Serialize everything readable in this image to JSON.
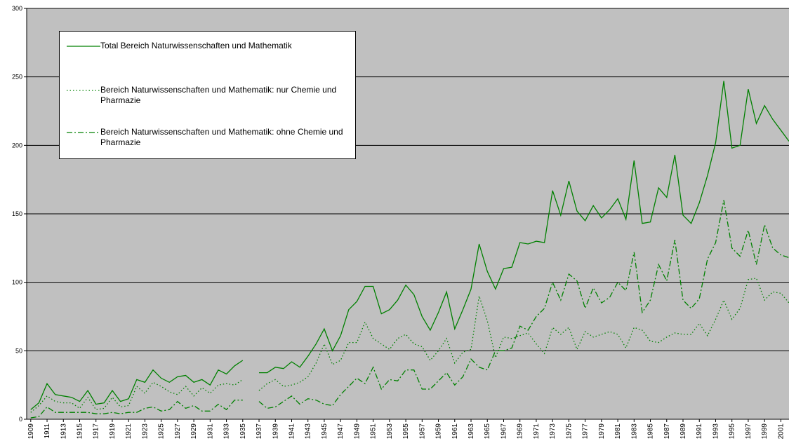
{
  "chart_data": {
    "type": "line",
    "x": [
      1909,
      1910,
      1911,
      1912,
      1913,
      1914,
      1915,
      1916,
      1917,
      1918,
      1919,
      1920,
      1921,
      1922,
      1923,
      1924,
      1925,
      1926,
      1927,
      1928,
      1929,
      1930,
      1931,
      1932,
      1933,
      1934,
      1935,
      1936,
      1937,
      1938,
      1939,
      1940,
      1941,
      1942,
      1943,
      1944,
      1945,
      1946,
      1947,
      1948,
      1949,
      1950,
      1951,
      1952,
      1953,
      1954,
      1955,
      1956,
      1957,
      1958,
      1959,
      1960,
      1961,
      1962,
      1963,
      1964,
      1965,
      1966,
      1967,
      1968,
      1969,
      1970,
      1971,
      1972,
      1973,
      1974,
      1975,
      1976,
      1977,
      1978,
      1979,
      1980,
      1981,
      1982,
      1983,
      1984,
      1985,
      1986,
      1987,
      1988,
      1989,
      1990,
      1991,
      1992,
      1993,
      1994,
      1995,
      1996,
      1997,
      1998,
      1999,
      2000,
      2001,
      2002
    ],
    "xlim": [
      1908.5,
      2002
    ],
    "xticks": [
      1909,
      1911,
      1913,
      1915,
      1917,
      1919,
      1921,
      1923,
      1925,
      1927,
      1929,
      1931,
      1933,
      1935,
      1937,
      1939,
      1941,
      1943,
      1945,
      1947,
      1949,
      1951,
      1953,
      1955,
      1957,
      1959,
      1961,
      1963,
      1965,
      1967,
      1969,
      1971,
      1973,
      1975,
      1977,
      1979,
      1981,
      1983,
      1985,
      1987,
      1989,
      1991,
      1993,
      1995,
      1997,
      1999,
      2001
    ],
    "ylim": [
      0,
      300
    ],
    "yticks": [
      0,
      50,
      100,
      150,
      200,
      250,
      300
    ],
    "grid": true,
    "series": [
      {
        "name": "Total Bereich Naturwissenschaften und Mathematik",
        "color": "#008000",
        "dash": "solid",
        "values": [
          7,
          12,
          26,
          18,
          17,
          16,
          13,
          21,
          11,
          12,
          21,
          13,
          15,
          29,
          27,
          36,
          30,
          27,
          31,
          32,
          27,
          29,
          25,
          36,
          33,
          39,
          43,
          null,
          34,
          34,
          38,
          37,
          42,
          38,
          46,
          55,
          66,
          50,
          61,
          80,
          86,
          97,
          97,
          77,
          80,
          87,
          98,
          91,
          75,
          65,
          78,
          93,
          66,
          80,
          95,
          128,
          108,
          95,
          110,
          111,
          129,
          128,
          130,
          129,
          167,
          149,
          174,
          152,
          145,
          156,
          147,
          153,
          161,
          146,
          189,
          143,
          144,
          169,
          162,
          193,
          149,
          143,
          158,
          178,
          202,
          247,
          198,
          200,
          241,
          216,
          229,
          219,
          211,
          203
        ]
      },
      {
        "name": "Bereich Naturwissenschaften und Mathematik: nur Chemie und Pharmazie",
        "color": "#008000",
        "dash": "dotted",
        "values": [
          5,
          10,
          17,
          13,
          12,
          12,
          8,
          16,
          7,
          8,
          16,
          9,
          10,
          24,
          19,
          27,
          24,
          20,
          18,
          24,
          17,
          23,
          19,
          25,
          26,
          25,
          29,
          null,
          21,
          26,
          29,
          24,
          25,
          27,
          31,
          41,
          55,
          40,
          43,
          56,
          56,
          71,
          59,
          55,
          51,
          59,
          62,
          55,
          53,
          43,
          50,
          59,
          41,
          49,
          51,
          90,
          72,
          45,
          60,
          59,
          61,
          63,
          55,
          48,
          67,
          62,
          67,
          51,
          64,
          60,
          62,
          64,
          62,
          52,
          67,
          65,
          57,
          56,
          60,
          63,
          62,
          62,
          70,
          61,
          73,
          87,
          73,
          81,
          102,
          103,
          87,
          93,
          92,
          85
        ]
      },
      {
        "name": "Bereich Naturwissenschaften und Mathematik: ohne Chemie und Pharmazie",
        "color": "#008000",
        "dash": "dashdot",
        "values": [
          1,
          2,
          9,
          5,
          5,
          5,
          5,
          5,
          4,
          4,
          5,
          4,
          5,
          5,
          8,
          9,
          6,
          7,
          13,
          8,
          10,
          6,
          6,
          11,
          7,
          14,
          14,
          null,
          13,
          8,
          9,
          13,
          17,
          11,
          15,
          14,
          11,
          10,
          18,
          24,
          30,
          26,
          38,
          22,
          29,
          28,
          36,
          36,
          22,
          22,
          28,
          34,
          25,
          31,
          44,
          38,
          36,
          50,
          50,
          52,
          68,
          65,
          75,
          81,
          100,
          87,
          106,
          101,
          81,
          96,
          85,
          89,
          100,
          94,
          122,
          78,
          87,
          113,
          101,
          131,
          87,
          81,
          88,
          117,
          129,
          160,
          125,
          119,
          138,
          113,
          142,
          125,
          120,
          118
        ]
      }
    ]
  }
}
